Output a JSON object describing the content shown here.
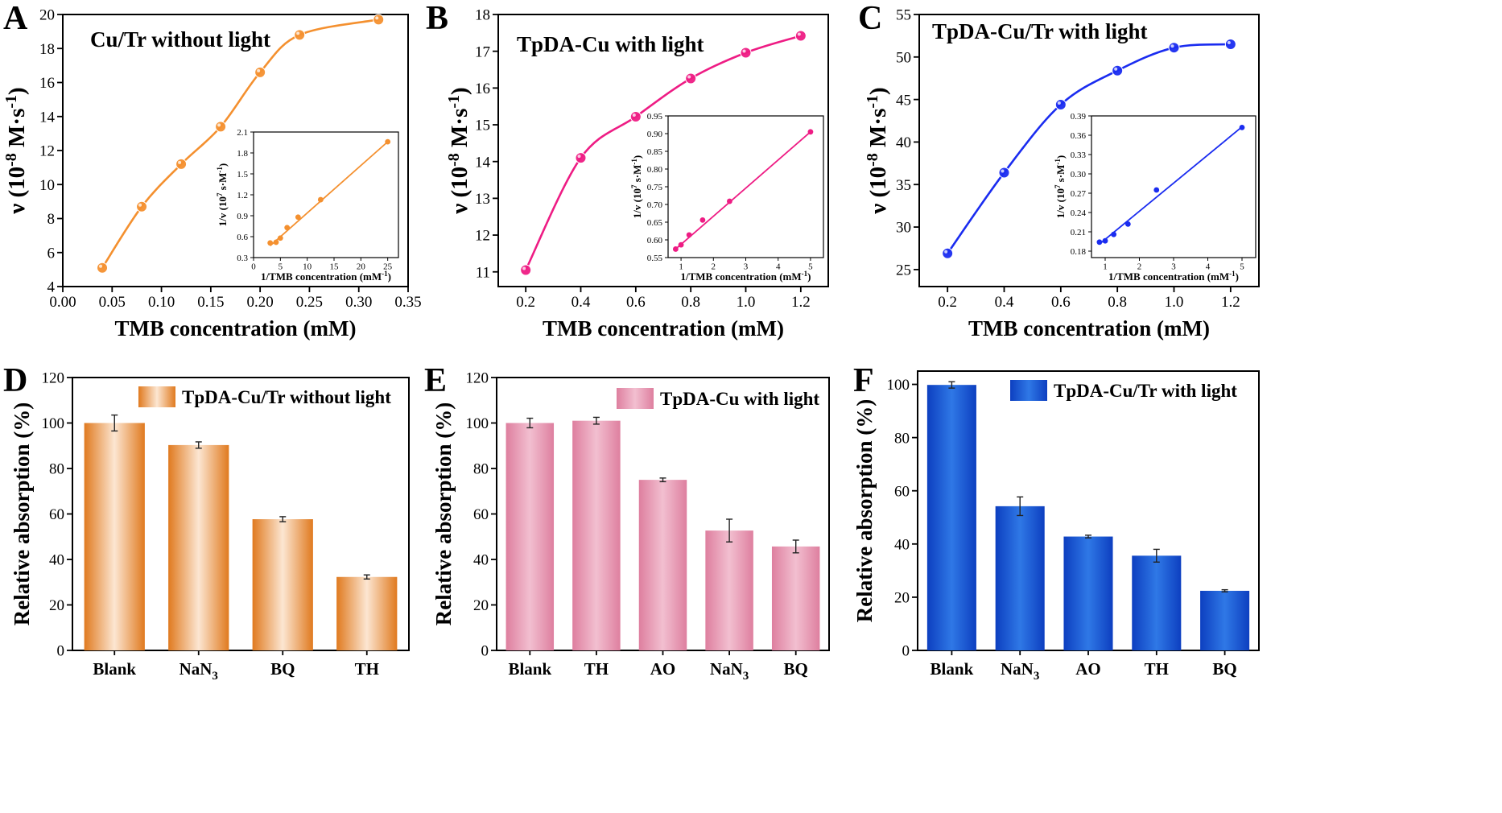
{
  "figure": {
    "chart_data": [
      {
        "panel": "A",
        "type": "line",
        "title": "Cu/Tr without light",
        "xlabel": "TMB concentration (mM)",
        "ylabel_main": "ν (10",
        "ylabel_exp": "-8",
        "ylabel_tail": " M·s",
        "ylabel_unit_exp": "-1",
        "ylabel_close": ")",
        "xlim": [
          0,
          0.35
        ],
        "ylim": [
          4,
          20
        ],
        "xticks": [
          "0.00",
          "0.05",
          "0.10",
          "0.15",
          "0.20",
          "0.25",
          "0.30",
          "0.35"
        ],
        "yticks": [
          "4",
          "6",
          "8",
          "10",
          "12",
          "14",
          "16",
          "18",
          "20"
        ],
        "color": "#F4902F",
        "x": [
          0.04,
          0.08,
          0.12,
          0.16,
          0.2,
          0.24,
          0.32
        ],
        "y": [
          5.1,
          8.7,
          11.2,
          13.4,
          16.6,
          18.8,
          19.7
        ],
        "inset": {
          "xlabel": "1/TMB concentration (mM",
          "xlabel_exp": "-1",
          "xlabel_close": ")",
          "ylabel": "1/v (10",
          "ylabel_exp": "7",
          "ylabel_tail": " s·M",
          "ylabel_unit_exp": "-1",
          "ylabel_close": ")",
          "xlim": [
            0,
            27
          ],
          "ylim": [
            0.3,
            2.1
          ],
          "xticks": [
            "0",
            "5",
            "10",
            "15",
            "20",
            "25"
          ],
          "yticks": [
            "0.3",
            "0.6",
            "0.9",
            "1.2",
            "1.5",
            "1.8",
            "2.1"
          ],
          "x": [
            3.1,
            4.2,
            5.0,
            6.25,
            8.3,
            12.5,
            25
          ],
          "y": [
            0.51,
            0.52,
            0.58,
            0.73,
            0.88,
            1.13,
            1.96
          ],
          "fit": [
            [
              3.1,
              0.47
            ],
            [
              25,
              1.96
            ]
          ]
        }
      },
      {
        "panel": "B",
        "type": "line",
        "title": "TpDA-Cu with light",
        "xlabel": "TMB concentration (mM)",
        "ylabel_main": "ν (10",
        "ylabel_exp": "-8",
        "ylabel_tail": " M·s",
        "ylabel_unit_exp": "-1",
        "ylabel_close": ")",
        "xlim": [
          0.1,
          1.3
        ],
        "ylim": [
          10.6,
          18
        ],
        "xticks": [
          "0.2",
          "0.4",
          "0.6",
          "0.8",
          "1.0",
          "1.2"
        ],
        "yticks": [
          "11",
          "12",
          "13",
          "14",
          "15",
          "16",
          "17",
          "18"
        ],
        "color": "#EE1C84",
        "x": [
          0.2,
          0.4,
          0.6,
          0.8,
          1.0,
          1.2
        ],
        "y": [
          11.05,
          14.1,
          15.22,
          16.26,
          16.96,
          17.42
        ],
        "inset": {
          "xlabel": "1/TMB concentration (mM",
          "xlabel_exp": "-1",
          "xlabel_close": ")",
          "ylabel": "1/v (10",
          "ylabel_exp": "7",
          "ylabel_tail": " s·M",
          "ylabel_unit_exp": "-1",
          "ylabel_close": ")",
          "xlim": [
            0.6,
            5.4
          ],
          "ylim": [
            0.55,
            0.95
          ],
          "xticks": [
            "1",
            "2",
            "3",
            "4",
            "5"
          ],
          "yticks": [
            "0.55",
            "0.60",
            "0.65",
            "0.70",
            "0.75",
            "0.80",
            "0.85",
            "0.90",
            "0.95"
          ],
          "x": [
            0.833,
            1.0,
            1.25,
            1.667,
            2.5,
            5.0
          ],
          "y": [
            0.574,
            0.586,
            0.614,
            0.656,
            0.709,
            0.905
          ],
          "fit": [
            [
              0.833,
              0.574
            ],
            [
              5.0,
              0.905
            ]
          ]
        }
      },
      {
        "panel": "C",
        "type": "line",
        "title": "TpDA-Cu/Tr with light",
        "xlabel": "TMB concentration (mM)",
        "ylabel_main": "ν (10",
        "ylabel_exp": "-8",
        "ylabel_tail": " M·s",
        "ylabel_unit_exp": "-1",
        "ylabel_close": ")",
        "xlim": [
          0.1,
          1.3
        ],
        "ylim": [
          23,
          55
        ],
        "xticks": [
          "0.2",
          "0.4",
          "0.6",
          "0.8",
          "1.0",
          "1.2"
        ],
        "yticks": [
          "25",
          "30",
          "35",
          "40",
          "45",
          "50",
          "55"
        ],
        "color": "#1A2CF0",
        "x": [
          0.2,
          0.4,
          0.6,
          0.8,
          1.0,
          1.2
        ],
        "y": [
          26.9,
          36.4,
          44.4,
          48.4,
          51.1,
          51.5
        ],
        "inset": {
          "xlabel": "1/TMB concentration (mM",
          "xlabel_exp": "-1",
          "xlabel_close": ")",
          "ylabel": "1/v (10",
          "ylabel_exp": "7",
          "ylabel_tail": " s·M",
          "ylabel_unit_exp": "-1",
          "ylabel_close": ")",
          "xlim": [
            0.6,
            5.4
          ],
          "ylim": [
            0.17,
            0.39
          ],
          "xticks": [
            "1",
            "2",
            "3",
            "4",
            "5"
          ],
          "yticks": [
            "0.18",
            "0.21",
            "0.24",
            "0.27",
            "0.30",
            "0.33",
            "0.36",
            "0.39"
          ],
          "x": [
            0.833,
            1.0,
            1.25,
            1.667,
            2.5,
            5.0
          ],
          "y": [
            0.194,
            0.196,
            0.206,
            0.222,
            0.275,
            0.372
          ],
          "fit": [
            [
              0.833,
              0.191
            ],
            [
              5.0,
              0.373
            ]
          ]
        }
      },
      {
        "panel": "D",
        "type": "bar",
        "legend": "TpDA-Cu/Tr  without light",
        "ylabel": "Relative absorption (%)",
        "ylim": [
          0,
          120
        ],
        "yticks": [
          "0",
          "20",
          "40",
          "60",
          "80",
          "100",
          "120"
        ],
        "color_edge": "#E07A1F",
        "color_mid": "#FCE6D2",
        "categories": [
          "Blank",
          "NaN",
          "BQ",
          "TH"
        ],
        "category_subs": [
          "",
          "3",
          "",
          ""
        ],
        "values": [
          100,
          90.3,
          57.7,
          32.3
        ],
        "errors": [
          3.5,
          1.4,
          1.1,
          0.9
        ]
      },
      {
        "panel": "E",
        "type": "bar",
        "legend": "TpDA-Cu  with light",
        "ylabel": "Relative absorption (%)",
        "ylim": [
          0,
          120
        ],
        "yticks": [
          "0",
          "20",
          "40",
          "60",
          "80",
          "100",
          "120"
        ],
        "color_edge": "#DE7F9F",
        "color_mid": "#F2BFD0",
        "categories": [
          "Blank",
          "TH",
          "AO",
          "NaN",
          "BQ"
        ],
        "category_subs": [
          "",
          "",
          "",
          "3",
          ""
        ],
        "values": [
          100,
          101,
          75,
          52.7,
          45.7
        ],
        "errors": [
          2.1,
          1.5,
          0.8,
          5.0,
          2.8
        ]
      },
      {
        "panel": "F",
        "type": "bar",
        "legend": "TpDA-Cu/Tr  with light",
        "ylabel": "Relative absorption (%)",
        "ylim": [
          0,
          105
        ],
        "yticks": [
          "0",
          "20",
          "40",
          "60",
          "80",
          "100"
        ],
        "color_edge": "#0D3FC0",
        "color_mid": "#2F78E6",
        "categories": [
          "Blank",
          "NaN",
          "AO",
          "TH",
          "BQ"
        ],
        "category_subs": [
          "",
          "3",
          "",
          "",
          ""
        ],
        "values": [
          99.8,
          54.2,
          42.8,
          35.6,
          22.4
        ],
        "errors": [
          1.2,
          3.5,
          0.5,
          2.4,
          0.4
        ]
      }
    ]
  }
}
